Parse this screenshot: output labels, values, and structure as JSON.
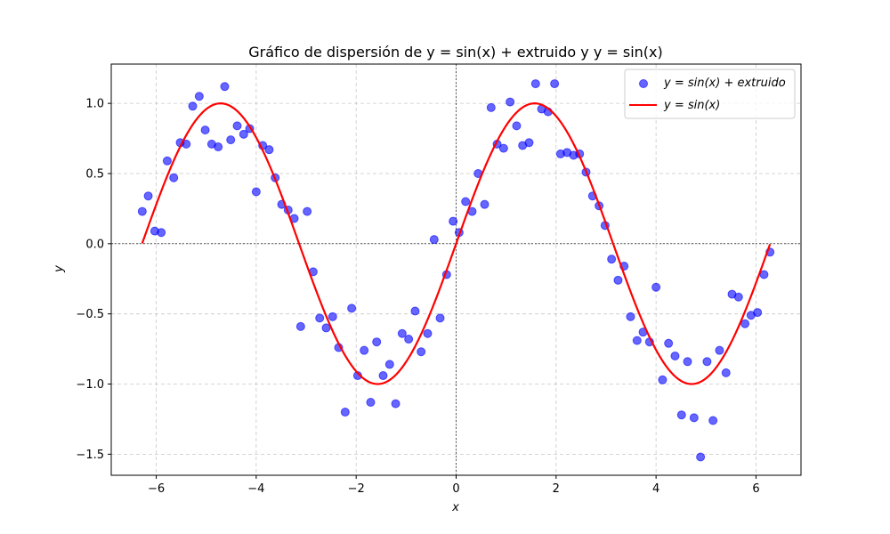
{
  "chart_data": {
    "type": "scatter",
    "title": "Gráfico de dispersión de y = sin(x) + extruido y y = sin(x)",
    "xlabel": "x",
    "ylabel": "y",
    "xlim": [
      -6.9,
      6.9
    ],
    "ylim": [
      -1.65,
      1.28
    ],
    "x_ticks": [
      -6,
      -4,
      -2,
      0,
      2,
      4,
      6
    ],
    "y_ticks": [
      -1.5,
      -1.0,
      -0.5,
      0.0,
      0.5,
      1.0
    ],
    "x_tick_labels": [
      "−6",
      "−4",
      "−2",
      "0",
      "2",
      "4",
      "6"
    ],
    "y_tick_labels": [
      "−1.5",
      "−1.0",
      "−0.5",
      "0.0",
      "0.5",
      "1.0"
    ],
    "grid": true,
    "legend_position": "top-right",
    "legend": [
      "y = sin(x) + extruido",
      "y = sin(x)"
    ],
    "colors": {
      "scatter": "#0000ff",
      "line": "#ff0000"
    },
    "series": [
      {
        "name": "y = sin(x) + extruido",
        "kind": "scatter",
        "x": [
          -6.28,
          -6.16,
          -6.03,
          -5.9,
          -5.78,
          -5.65,
          -5.52,
          -5.4,
          -5.27,
          -5.14,
          -5.02,
          -4.89,
          -4.76,
          -4.63,
          -4.51,
          -4.38,
          -4.25,
          -4.13,
          -4.0,
          -3.87,
          -3.74,
          -3.62,
          -3.49,
          -3.36,
          -3.24,
          -3.11,
          -2.98,
          -2.86,
          -2.73,
          -2.6,
          -2.47,
          -2.35,
          -2.22,
          -2.09,
          -1.97,
          -1.84,
          -1.71,
          -1.59,
          -1.46,
          -1.33,
          -1.21,
          -1.08,
          -0.95,
          -0.82,
          -0.7,
          -0.57,
          -0.44,
          -0.32,
          -0.19,
          -0.06,
          0.06,
          0.19,
          0.32,
          0.44,
          0.57,
          0.7,
          0.82,
          0.95,
          1.08,
          1.21,
          1.33,
          1.46,
          1.59,
          1.71,
          1.84,
          1.97,
          2.09,
          2.22,
          2.35,
          2.47,
          2.6,
          2.73,
          2.86,
          2.98,
          3.11,
          3.24,
          3.36,
          3.49,
          3.62,
          3.74,
          3.87,
          4.0,
          4.13,
          4.25,
          4.38,
          4.51,
          4.63,
          4.76,
          4.89,
          5.02,
          5.14,
          5.27,
          5.4,
          5.52,
          5.65,
          5.78,
          5.9,
          6.03,
          6.16,
          6.28
        ],
        "y": [
          0.23,
          0.34,
          0.09,
          0.08,
          0.59,
          0.47,
          0.72,
          0.71,
          0.98,
          1.05,
          0.81,
          0.71,
          0.69,
          1.12,
          0.74,
          0.84,
          0.78,
          0.82,
          0.37,
          0.7,
          0.67,
          0.47,
          0.28,
          0.24,
          0.18,
          -0.59,
          0.23,
          -0.2,
          -0.53,
          -0.6,
          -0.52,
          -0.74,
          -1.2,
          -0.46,
          -0.94,
          -0.76,
          -1.13,
          -0.7,
          -0.94,
          -0.86,
          -1.14,
          -0.64,
          -0.68,
          -0.48,
          -0.77,
          -0.64,
          0.03,
          -0.53,
          -0.22,
          0.16,
          0.08,
          0.3,
          0.23,
          0.5,
          0.28,
          0.97,
          0.71,
          0.68,
          1.01,
          0.84,
          0.7,
          0.72,
          1.14,
          0.96,
          0.94,
          1.14,
          0.64,
          0.65,
          0.63,
          0.64,
          0.51,
          0.34,
          0.27,
          0.13,
          -0.11,
          -0.26,
          -0.16,
          -0.52,
          -0.69,
          -0.63,
          -0.7,
          -0.31,
          -0.97,
          -0.71,
          -0.8,
          -1.22,
          -0.84,
          -1.24,
          -1.52,
          -0.84,
          -1.26,
          -0.76,
          -0.92,
          -0.36,
          -0.38,
          -0.57,
          -0.51,
          -0.49,
          -0.22,
          -0.06
        ]
      },
      {
        "name": "y = sin(x)",
        "kind": "line",
        "function": "sin",
        "x_range": [
          -6.28,
          6.28
        ]
      }
    ]
  }
}
